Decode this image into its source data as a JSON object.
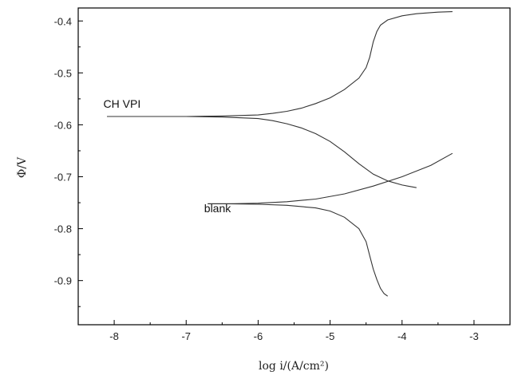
{
  "chart_data": {
    "type": "line",
    "xlabel": "log i/(A/cm²)",
    "ylabel": "Φ/V",
    "xlim": [
      -8.5,
      -2.5
    ],
    "ylim": [
      -0.985,
      -0.375
    ],
    "x_ticks": [
      -8,
      -7,
      -6,
      -5,
      -4,
      -3
    ],
    "x_tick_labels": [
      "-8",
      "-7",
      "-6",
      "-5",
      "-4",
      "-3"
    ],
    "y_ticks": [
      -0.4,
      -0.5,
      -0.6,
      -0.7,
      -0.8,
      -0.9
    ],
    "y_tick_labels": [
      "-0.4",
      "-0.5",
      "-0.6",
      "-0.7",
      "-0.8",
      "-0.9"
    ],
    "grid": false,
    "annotations": [
      {
        "text": "CH VPI",
        "x": -8.15,
        "y": -0.567
      },
      {
        "text": "blank",
        "x": -6.75,
        "y": -0.768
      }
    ],
    "series": [
      {
        "x": [
          -8.1,
          -7.5,
          -7.0,
          -6.5,
          -6.0,
          -5.8,
          -5.6,
          -5.4,
          -5.2,
          -5.0,
          -4.8,
          -4.6,
          -4.5,
          -4.45,
          -4.4,
          -4.35,
          -4.3,
          -4.2,
          -4.0,
          -3.8,
          -3.5,
          -3.3
        ],
        "y": [
          -0.584,
          -0.584,
          -0.584,
          -0.583,
          -0.581,
          -0.578,
          -0.574,
          -0.568,
          -0.559,
          -0.548,
          -0.532,
          -0.51,
          -0.49,
          -0.47,
          -0.44,
          -0.42,
          -0.408,
          -0.398,
          -0.39,
          -0.386,
          -0.383,
          -0.382
        ]
      },
      {
        "x": [
          -8.1,
          -7.5,
          -7.0,
          -6.5,
          -6.0,
          -5.8,
          -5.6,
          -5.4,
          -5.2,
          -5.0,
          -4.8,
          -4.6,
          -4.4,
          -4.2,
          -4.0,
          -3.8
        ],
        "y": [
          -0.584,
          -0.584,
          -0.584,
          -0.585,
          -0.588,
          -0.592,
          -0.598,
          -0.606,
          -0.617,
          -0.632,
          -0.652,
          -0.675,
          -0.695,
          -0.708,
          -0.716,
          -0.721
        ]
      },
      {
        "x": [
          -6.7,
          -6.4,
          -6.0,
          -5.6,
          -5.2,
          -4.8,
          -4.4,
          -4.0,
          -3.6,
          -3.3
        ],
        "y": [
          -0.752,
          -0.752,
          -0.751,
          -0.748,
          -0.743,
          -0.733,
          -0.718,
          -0.7,
          -0.678,
          -0.655
        ]
      },
      {
        "x": [
          -6.7,
          -6.4,
          -6.0,
          -5.6,
          -5.2,
          -5.0,
          -4.8,
          -4.6,
          -4.5,
          -4.45,
          -4.4,
          -4.35,
          -4.3,
          -4.25,
          -4.2
        ],
        "y": [
          -0.752,
          -0.752,
          -0.753,
          -0.755,
          -0.76,
          -0.766,
          -0.778,
          -0.8,
          -0.825,
          -0.852,
          -0.878,
          -0.898,
          -0.915,
          -0.925,
          -0.93
        ]
      }
    ]
  }
}
